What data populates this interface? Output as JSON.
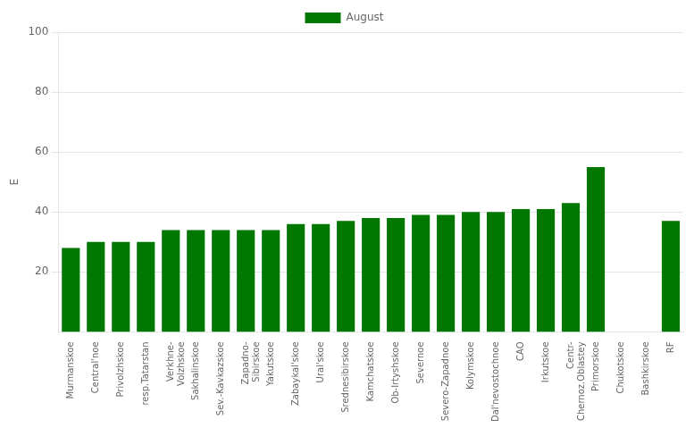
{
  "chart_data": {
    "type": "bar",
    "categories": [
      "Murmanskoe",
      "Central'noe",
      "Privolzhskoe",
      "resp.Tatarstan",
      "Verkhne-\nVolzhskoe",
      "Sakhalinskoe",
      "Sev.-Kavkazskoe",
      "Zapadno-\nSibirskoe",
      "Yakutskoe",
      "Zabaykal'skoe",
      "Ural'skoe",
      "Srednesibirskoe",
      "Kamchatskoe",
      "Ob-Irtyshskoe",
      "Severnoe",
      "Severo-Zapadnoe",
      "Kolymskoe",
      "Dal'nevostochnoe",
      "CAO",
      "Irkutskoe",
      "Centr-\nChernoz.Oblastey",
      "Primorskoe",
      "Chukotskoe",
      "Bashkirskoe",
      "RF"
    ],
    "series": [
      {
        "name": "August",
        "color": "#007700",
        "values": [
          28,
          30,
          30,
          30,
          34,
          34,
          34,
          34,
          34,
          36,
          36,
          37,
          38,
          38,
          39,
          39,
          40,
          40,
          41,
          41,
          43,
          55,
          0,
          0,
          37
        ]
      }
    ],
    "ylabel": "E",
    "ylim": [
      0,
      100
    ],
    "yticks": [
      20,
      40,
      60,
      80,
      100
    ],
    "grid": true,
    "legend": "top"
  }
}
